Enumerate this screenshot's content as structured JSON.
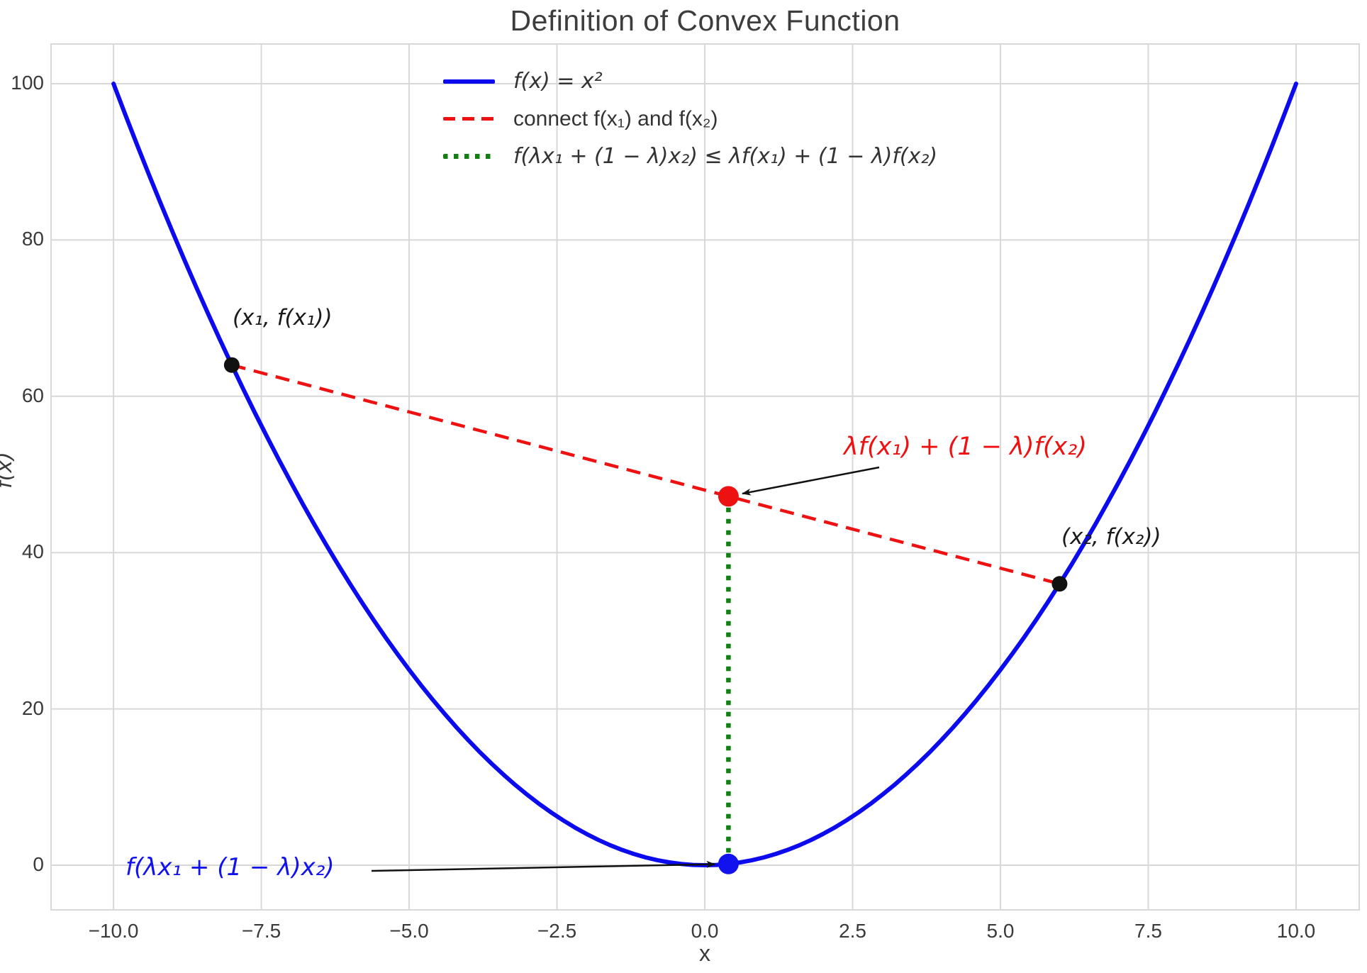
{
  "title": "Definition of Convex Function",
  "colors": {
    "curve_blue": "#0b0bee",
    "chord_red": "#ee1111",
    "inequality_green": "#108010",
    "point_black": "#111111",
    "grid": "#d8d8d8",
    "text": "#3a3a3a",
    "annotation_red": "#ee1111",
    "annotation_blue": "#1212ee"
  },
  "chart_data": {
    "type": "line",
    "title": "Definition of Convex Function",
    "xlabel": "x",
    "ylabel": "f(x)",
    "xlim": [
      -11.056,
      11.067
    ],
    "ylim": [
      -5.717,
      105.08
    ],
    "grid": true,
    "legend_position": "upper center",
    "x_ticks": [
      -10,
      -7.5,
      -5,
      -2.5,
      0,
      2.5,
      5,
      7.5,
      10
    ],
    "x_tick_labels": [
      "−10.0",
      "−7.5",
      "−5.0",
      "−2.5",
      "0.0",
      "2.5",
      "5.0",
      "7.5",
      "10.0"
    ],
    "y_ticks": [
      0,
      20,
      40,
      60,
      80,
      100
    ],
    "y_tick_labels": [
      "0",
      "20",
      "40",
      "60",
      "80",
      "100"
    ],
    "function": "f(x) = x²",
    "curve": {
      "expr": "x^2",
      "x_range": [
        -10,
        10
      ],
      "color": "#0b0bee",
      "style": "solid"
    },
    "x1": -8,
    "x2": 6,
    "lambda": 0.4,
    "chord": {
      "from": [
        -8,
        64
      ],
      "to": [
        6,
        36
      ],
      "color": "#ee1111",
      "style": "dashed"
    },
    "vertical_segment": {
      "x": 0.4,
      "y_from": 0.16,
      "y_to": 47.2,
      "color": "#108010",
      "style": "dotted"
    },
    "points": [
      {
        "id": "x1",
        "x": -8,
        "y": 64,
        "color": "#111111",
        "size": "small"
      },
      {
        "id": "x2",
        "x": 6,
        "y": 36,
        "color": "#111111",
        "size": "small"
      },
      {
        "id": "chord-point",
        "x": 0.4,
        "y": 47.2,
        "color": "#ee1111",
        "size": "large"
      },
      {
        "id": "curve-point",
        "x": 0.4,
        "y": 0.16,
        "color": "#1212ee",
        "size": "large"
      }
    ]
  },
  "legend": {
    "items": [
      {
        "label": "f(x) = x²",
        "style": "solid",
        "color": "#0b0bee",
        "math": true
      },
      {
        "label": "connect f(x₁) and f(x₂)",
        "style": "dashed",
        "color": "#ee1111",
        "math": false
      },
      {
        "label": "f(λx₁ + (1 − λ)x₂) ≤ λf(x₁) + (1 − λ)f(x₂)",
        "style": "dotted",
        "color": "#108010",
        "math": true
      }
    ]
  },
  "annotations": {
    "p1_label": "(x₁, f(x₁))",
    "p2_label": "(x₂, f(x₂))",
    "chord_value_label": "λf(x₁) + (1 − λ)f(x₂)",
    "curve_value_label": "f(λx₁ + (1 − λ)x₂)"
  }
}
